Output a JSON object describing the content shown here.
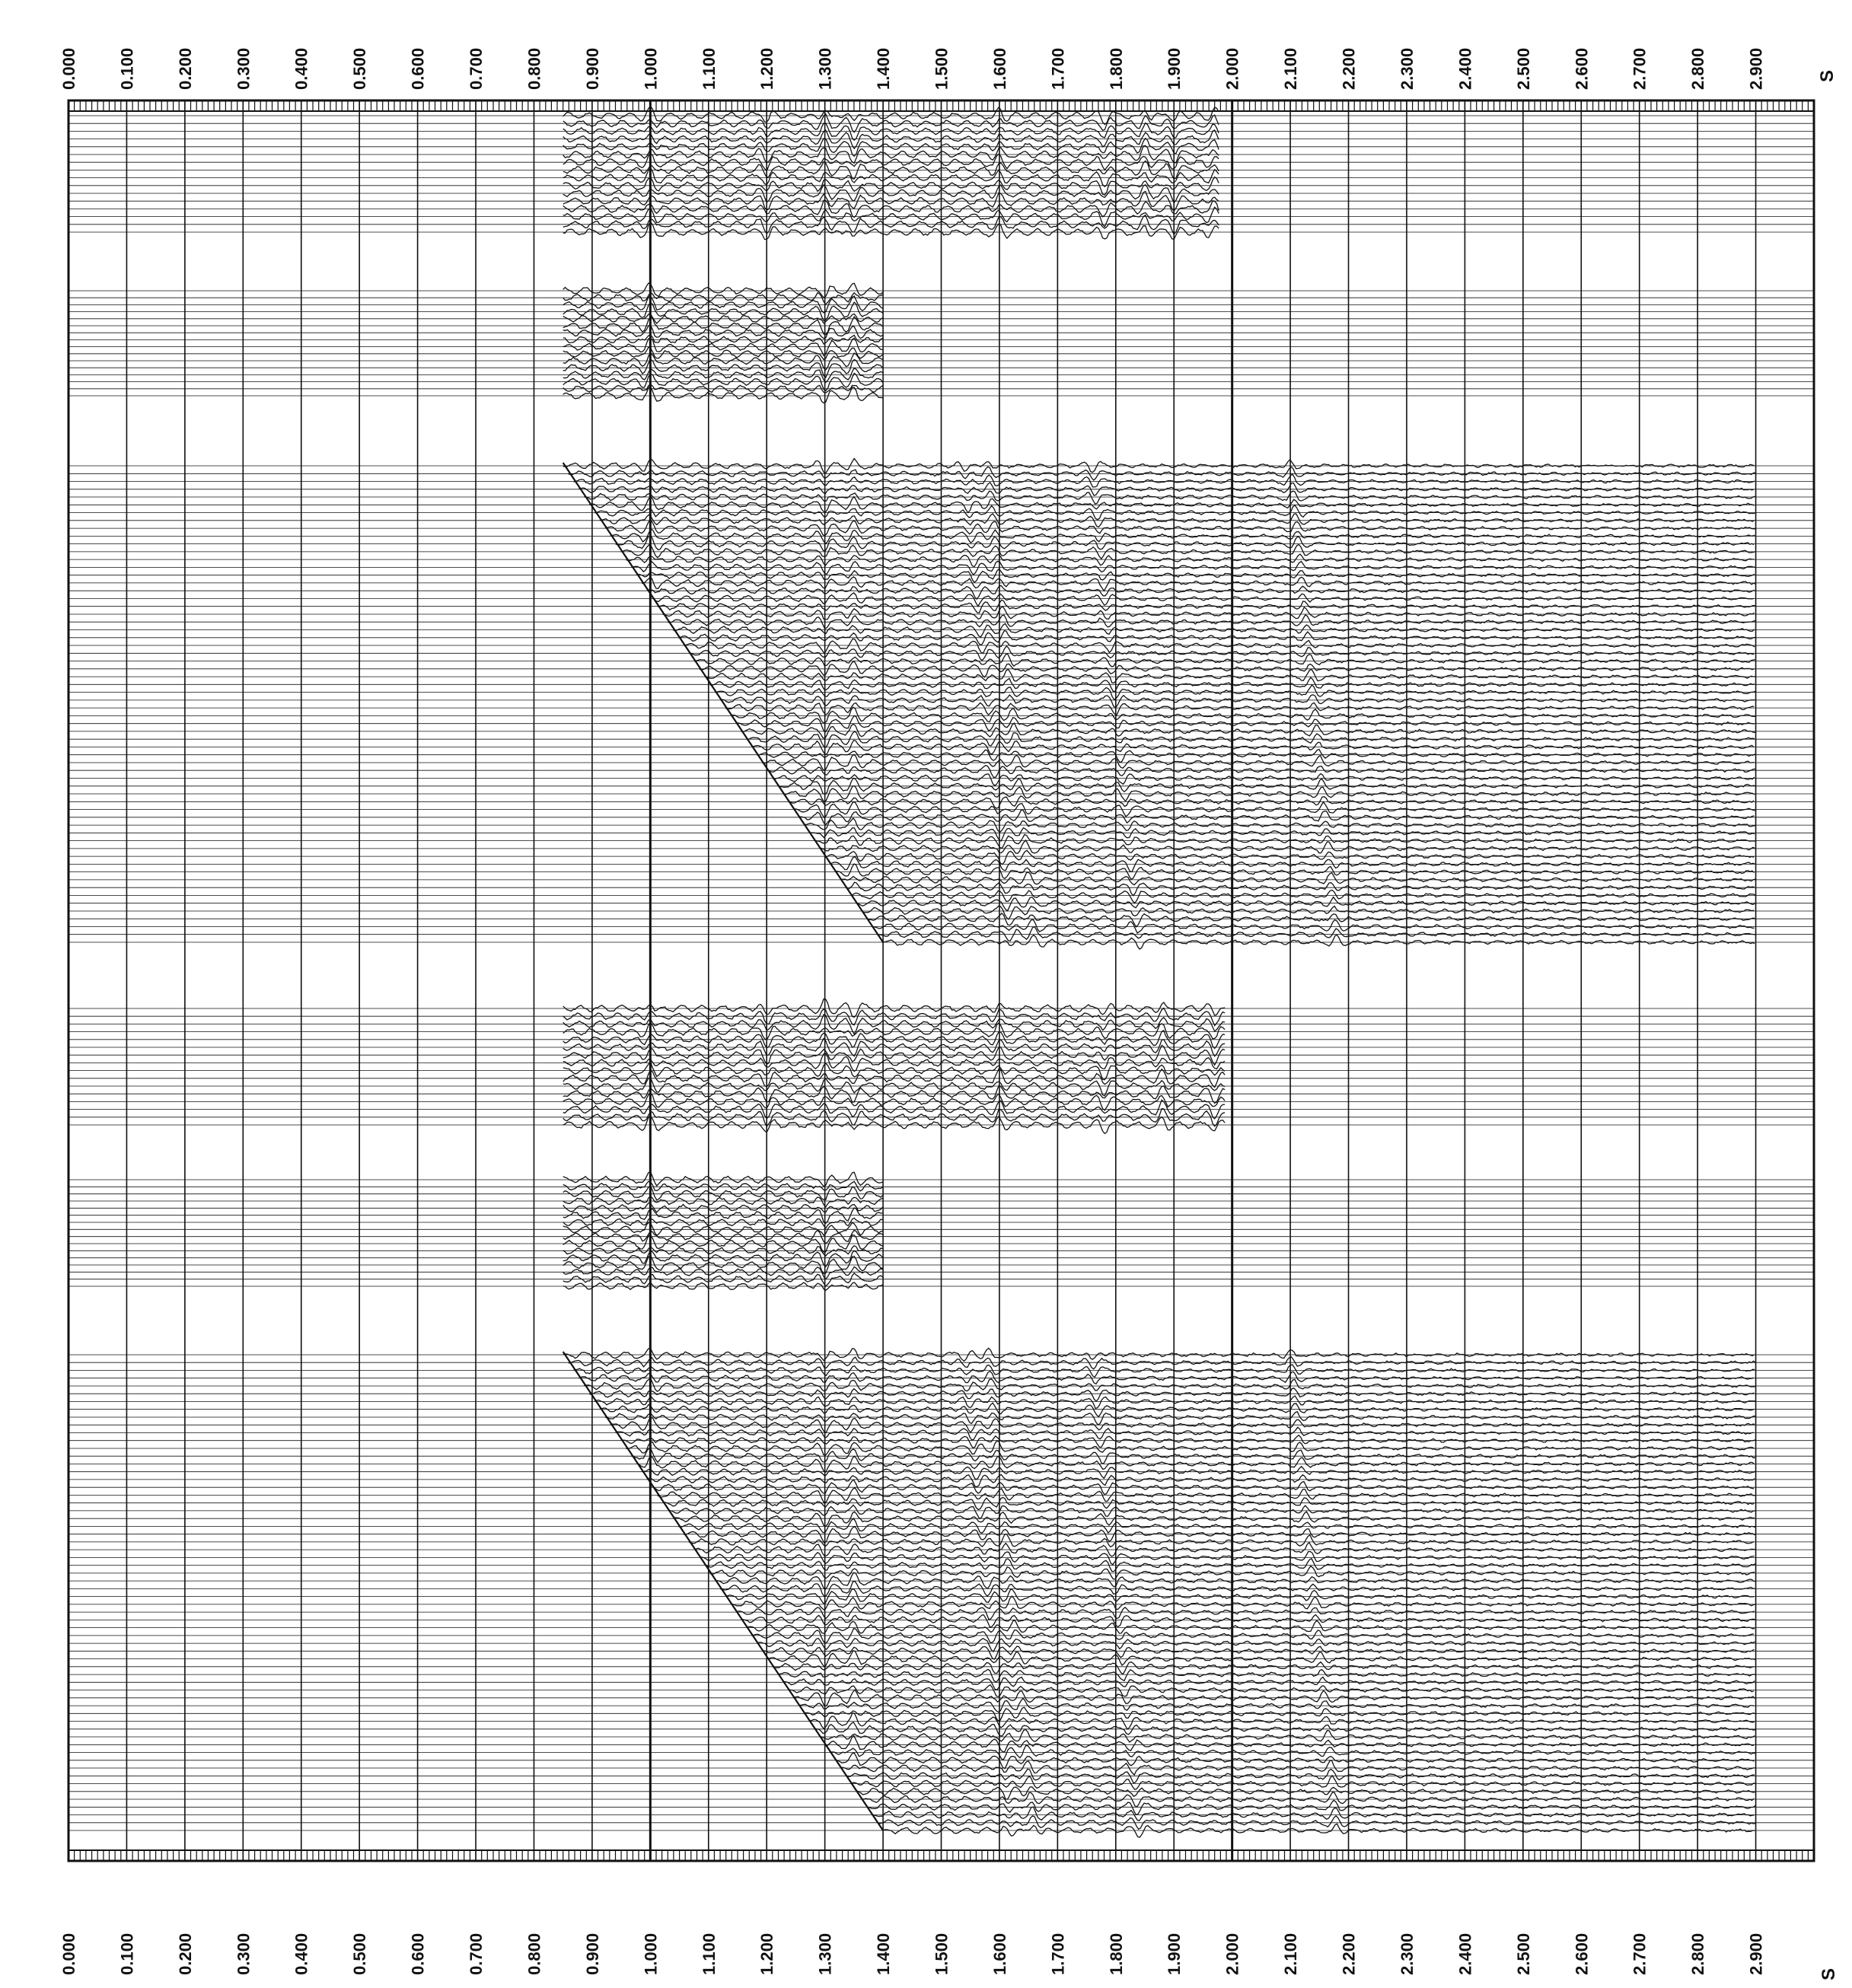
{
  "chart_data": {
    "type": "line",
    "title": "",
    "time_axis": {
      "unit": "S",
      "range": [
        0.0,
        3.0
      ],
      "tick_labels": [
        "0.000",
        "0.100",
        "0.200",
        "0.300",
        "0.400",
        "0.500",
        "0.600",
        "0.700",
        "0.800",
        "0.900",
        "1.000",
        "1.100",
        "1.200",
        "1.300",
        "1.400",
        "1.500",
        "1.600",
        "1.700",
        "1.800",
        "1.900",
        "2.000",
        "2.100",
        "2.200",
        "2.300",
        "2.400",
        "2.500",
        "2.600",
        "2.700",
        "2.800",
        "2.900"
      ],
      "grid": true,
      "label_positions": [
        "top",
        "bottom"
      ]
    },
    "panels": [
      {
        "name": "",
        "kind": "band",
        "time_range": [
          0.85,
          1.98
        ],
        "trace_count": 16,
        "strong_events_s": [
          1.0,
          1.2,
          1.3,
          1.35,
          1.6,
          1.78,
          1.85,
          1.9,
          1.97
        ]
      },
      {
        "name": "",
        "kind": "band",
        "time_range": [
          0.85,
          1.4
        ],
        "trace_count": 16,
        "strong_events_s": [
          1.0,
          1.3,
          1.35
        ]
      },
      {
        "name": "",
        "kind": "gather",
        "first_break_s": [
          0.85,
          1.4
        ],
        "trace_count": 62,
        "strong_events_s": [
          1.0,
          1.3,
          1.35,
          1.58,
          1.62,
          1.8,
          2.14
        ]
      },
      {
        "name": "",
        "kind": "band",
        "time_range": [
          0.85,
          1.99
        ],
        "trace_count": 16,
        "strong_events_s": [
          1.0,
          1.2,
          1.3,
          1.35,
          1.6,
          1.78,
          1.88,
          1.97
        ]
      },
      {
        "name": "",
        "kind": "band",
        "time_range": [
          0.85,
          1.4
        ],
        "trace_count": 16,
        "strong_events_s": [
          1.0,
          1.3,
          1.35
        ]
      },
      {
        "name": "",
        "kind": "gather",
        "first_break_s": [
          0.85,
          1.4
        ],
        "trace_count": 62,
        "strong_events_s": [
          1.0,
          1.3,
          1.35,
          1.58,
          1.62,
          1.8,
          2.14
        ]
      }
    ]
  },
  "colors": {
    "ink": "#111111",
    "paper": "#ffffff",
    "grid": "#222222"
  }
}
